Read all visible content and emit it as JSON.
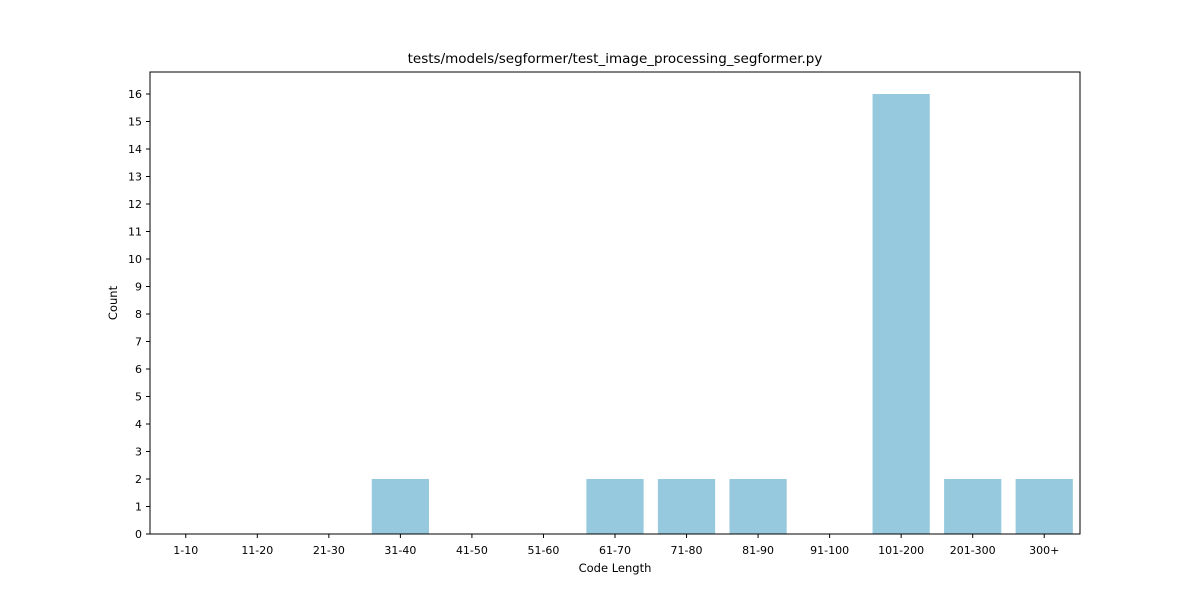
{
  "chart_data": {
    "type": "bar",
    "title": "tests/models/segformer/test_image_processing_segformer.py",
    "xlabel": "Code Length",
    "ylabel": "Count",
    "categories": [
      "1-10",
      "11-20",
      "21-30",
      "31-40",
      "41-50",
      "51-60",
      "61-70",
      "71-80",
      "81-90",
      "91-100",
      "101-200",
      "201-300",
      "300+"
    ],
    "values": [
      0,
      0,
      0,
      2,
      0,
      0,
      2,
      2,
      2,
      0,
      16,
      2,
      2
    ],
    "ylim": [
      0,
      16.8
    ],
    "yticks": [
      0,
      1,
      2,
      3,
      4,
      5,
      6,
      7,
      8,
      9,
      10,
      11,
      12,
      13,
      14,
      15,
      16
    ],
    "grid": false,
    "bar_color": "#96c9de"
  }
}
